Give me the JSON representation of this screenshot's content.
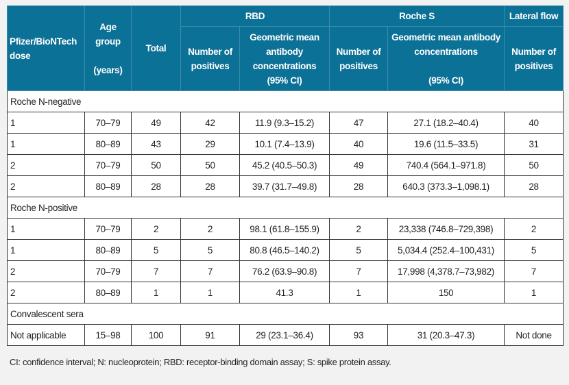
{
  "header": {
    "dose": "Pfizer/BioNTech dose",
    "age_group": "Age group",
    "age_unit": "(years)",
    "total": "Total",
    "rbd": "RBD",
    "roche_s": "Roche S",
    "lateral_flow": "Lateral flow",
    "num_positives": "Number of positives",
    "gmc_rbd": "Geometric mean antibody concentrations",
    "gmc_roche": "Geometric mean antibody concentrations",
    "ci": "(95% CI)"
  },
  "sections": [
    {
      "label": "Roche N-negative",
      "rows": [
        [
          "1",
          "70–79",
          "49",
          "42",
          "11.9 (9.3–15.2)",
          "47",
          "27.1 (18.2–40.4)",
          "40"
        ],
        [
          "1",
          "80–89",
          "43",
          "29",
          "10.1 (7.4–13.9)",
          "40",
          "19.6 (11.5–33.5)",
          "31"
        ],
        [
          "2",
          "70–79",
          "50",
          "50",
          "45.2 (40.5–50.3)",
          "49",
          "740.4 (564.1–971.8)",
          "50"
        ],
        [
          "2",
          "80–89",
          "28",
          "28",
          "39.7 (31.7–49.8)",
          "28",
          "640.3 (373.3–1,098.1)",
          "28"
        ]
      ]
    },
    {
      "label": "Roche N-positive",
      "rows": [
        [
          "1",
          "70–79",
          "2",
          "2",
          "98.1 (61.8–155.9)",
          "2",
          "23,338 (746.8–729,398)",
          "2"
        ],
        [
          "1",
          "80–89",
          "5",
          "5",
          "80.8 (46.5–140.2)",
          "5",
          "5,034.4 (252.4–100,431)",
          "5"
        ],
        [
          "2",
          "70–79",
          "7",
          "7",
          "76.2 (63.9–90.8)",
          "7",
          "17,998 (4,378.7–73,982)",
          "7"
        ],
        [
          "2",
          "80–89",
          "1",
          "1",
          "41.3",
          "1",
          "150",
          "1"
        ]
      ]
    },
    {
      "label": "Convalescent sera",
      "rows": [
        [
          "Not applicable",
          "15–98",
          "100",
          "91",
          "29 (23.1–36.4)",
          "93",
          "31 (20.3–47.3)",
          "Not done"
        ]
      ]
    }
  ],
  "footnote": "CI: confidence interval; N: nucleoprotein; RBD: receptor-binding domain assay; S: spike protein assay.",
  "colors": {
    "header_bg": "#0c7196",
    "page_bg": "#f2f2f2"
  }
}
